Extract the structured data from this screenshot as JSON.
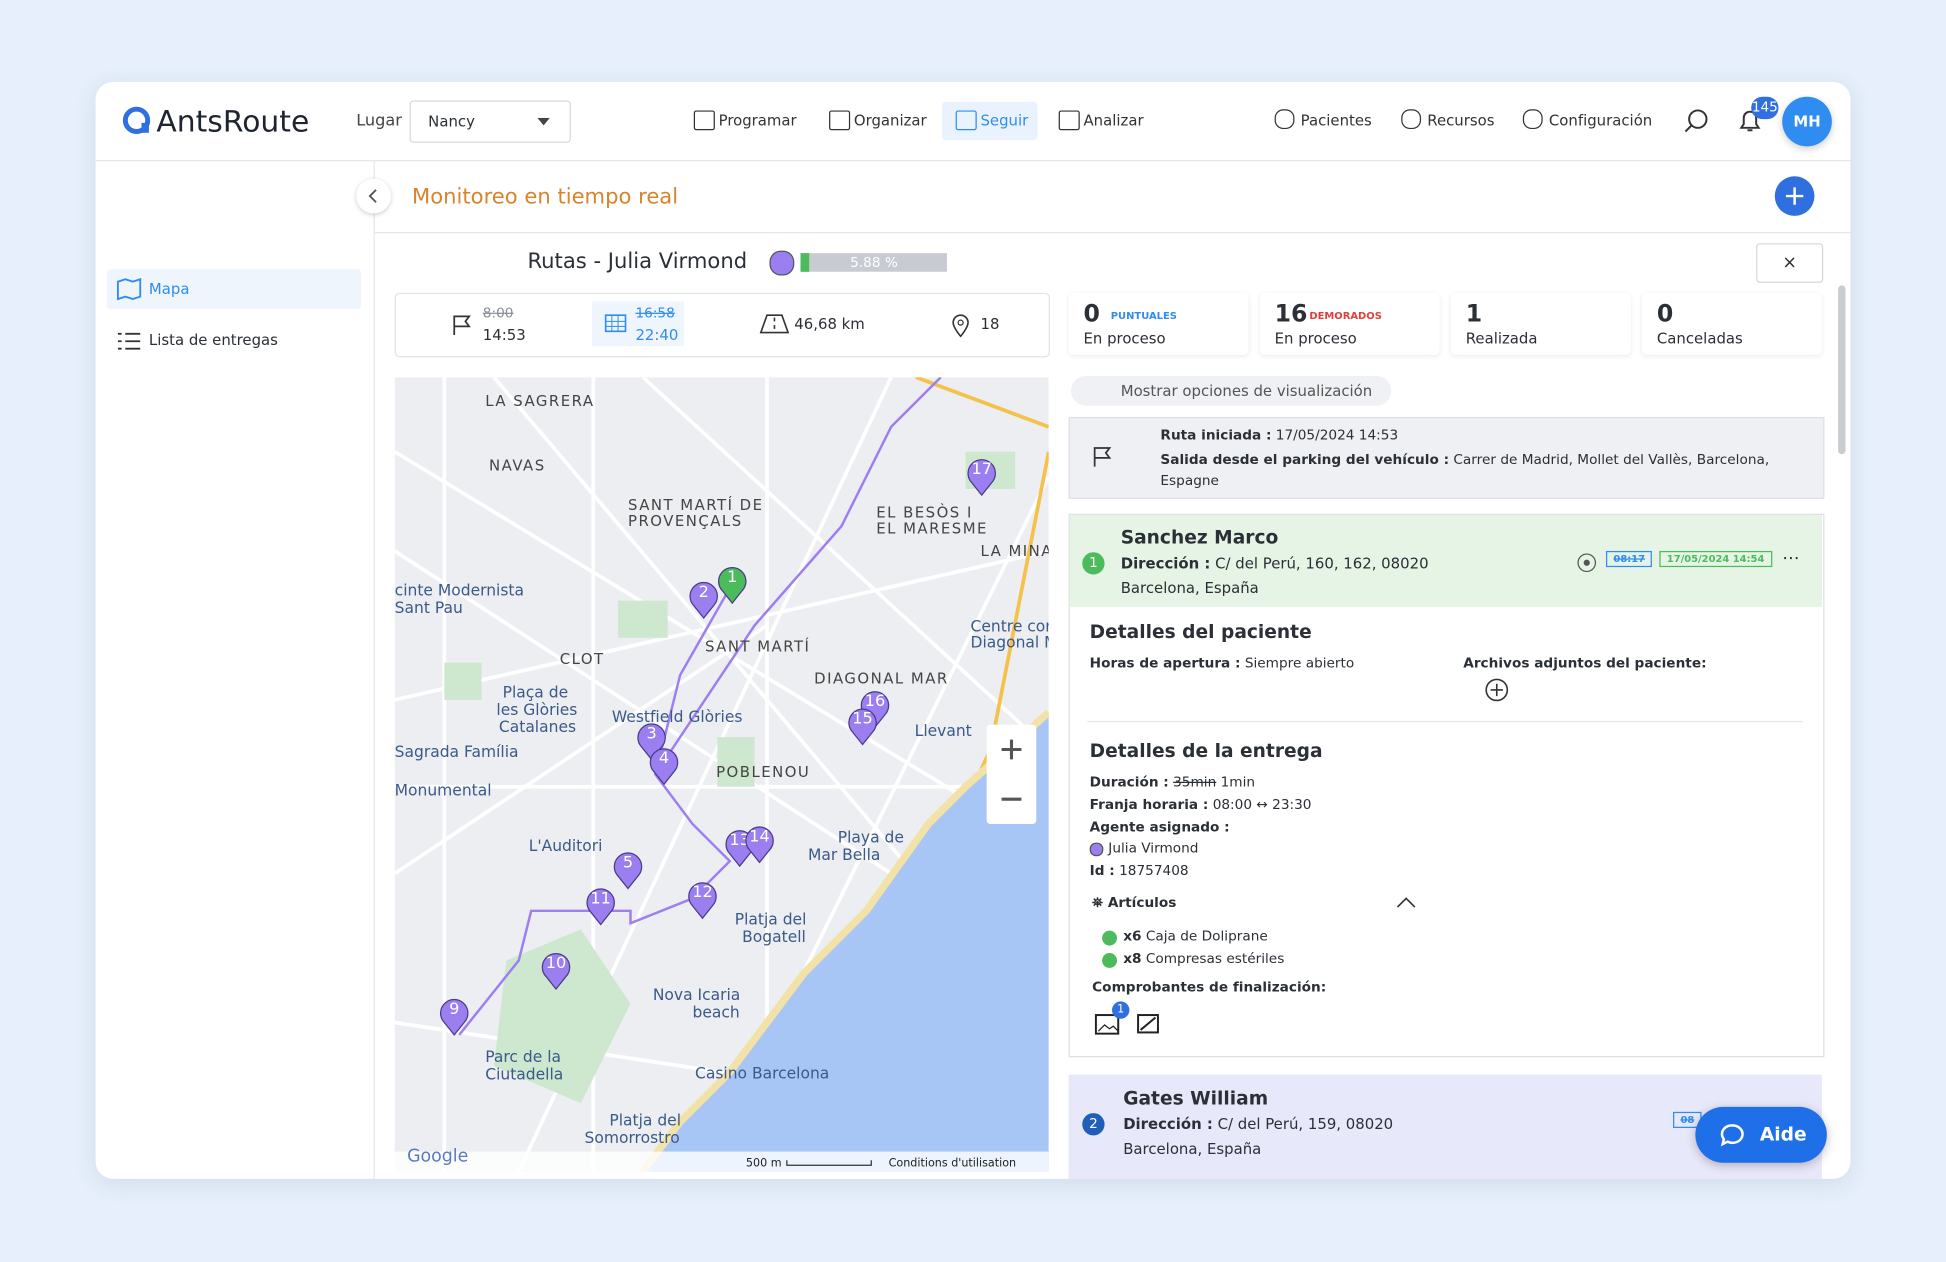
{
  "header": {
    "logo": "AntsRoute",
    "place_label": "Lugar",
    "place_value": "Nancy",
    "nav": [
      "Programar",
      "Organizar",
      "Seguir",
      "Analizar"
    ],
    "right_nav": [
      "Pacientes",
      "Recursos",
      "Configuración"
    ],
    "notifications": "145",
    "avatar": "MH"
  },
  "sidebar": {
    "items": [
      "Mapa",
      "Lista de entregas"
    ]
  },
  "page": {
    "title": "Monitoreo en tiempo real"
  },
  "route": {
    "title": "Rutas - Julia Virmond",
    "progress": "5.88 %",
    "start_planned": "8:00",
    "start_actual": "14:53",
    "end_planned": "16:58",
    "end_actual": "22:40",
    "distance": "46,68 km",
    "stops": "18"
  },
  "stats": [
    {
      "count": "0",
      "tag": "PUNTUALES",
      "label": "En proceso"
    },
    {
      "count": "16",
      "tag": "DEMORADOS",
      "label": "En proceso"
    },
    {
      "count": "1",
      "label": "Realizada"
    },
    {
      "count": "0",
      "label": "Canceladas"
    }
  ],
  "filter": "Mostrar opciones de visualización",
  "route_start": {
    "started_label": "Ruta iniciada :",
    "started_value": "17/05/2024 14:53",
    "departure_label": "Salida desde el parking del vehículo :",
    "departure_value": "Carrer de Madrid, Mollet del Vallès, Barcelona, Espagne"
  },
  "stops": [
    {
      "number": "1",
      "name": "Sanchez Marco",
      "address_label": "Dirección :",
      "address": "C/ del Perú, 160, 162, 08020",
      "city": "Barcelona, España",
      "planned": "08:17",
      "done": "17/05/2024 14:54"
    },
    {
      "number": "2",
      "name": "Gates William",
      "address_label": "Dirección :",
      "address": "C/ del Perú, 159, 08020",
      "city": "Barcelona, España",
      "planned": "08"
    }
  ],
  "patient": {
    "title": "Detalles del paciente",
    "hours_label": "Horas de apertura :",
    "hours_value": "Siempre abierto",
    "attachments": "Archivos adjuntos del paciente:"
  },
  "delivery": {
    "title": "Detalles de la entrega",
    "duration_label": "Duración :",
    "duration_planned": "35min",
    "duration_actual": "1min",
    "window_label": "Franja horaria :",
    "window_value": "08:00 ↔ 23:30",
    "agent_label": "Agente asignado :",
    "agent": "Julia Virmond",
    "id_label": "Id :",
    "id_value": "18757408",
    "articles_title": "Artículos",
    "articles": [
      {
        "qty": "x6",
        "name": "Caja de Doliprane"
      },
      {
        "qty": "x8",
        "name": "Compresas estériles"
      }
    ],
    "proofs_title": "Comprobantes de finalización:",
    "proof_count": "1"
  },
  "map": {
    "labels": [
      "LA SAGRERA",
      "NAVAS",
      "SANT MARTÍ DE",
      "PROVENÇALS",
      "EL BESÒS I",
      "EL MARESME",
      "LA MINA",
      "cinte Modernista",
      "Sant Pau",
      "CLOT",
      "SANT MARTÍ",
      "DIAGONAL MAR",
      "Centre cor",
      "Diagonal M",
      "Plaça de",
      "les Glòries",
      "Catalanes",
      "Westfield Glòries",
      "Llevant",
      "Sagrada Família",
      "POBLENOU",
      "Monumental",
      "L'Auditori",
      "Playa de",
      "Mar Bella",
      "Platja del",
      "Bogatell",
      "Nova Icaria",
      "beach",
      "Parc de la",
      "Ciutadella",
      "Casino Barcelona",
      "Platja del",
      "Somorrostro"
    ],
    "markers": [
      "17",
      "1",
      "2",
      "16",
      "15",
      "3",
      "4",
      "13",
      "14",
      "5",
      "12",
      "11",
      "10",
      "9"
    ],
    "scale": "500 m",
    "terms": "Conditions d'utilisation",
    "google": "Google"
  },
  "help": "Aide"
}
